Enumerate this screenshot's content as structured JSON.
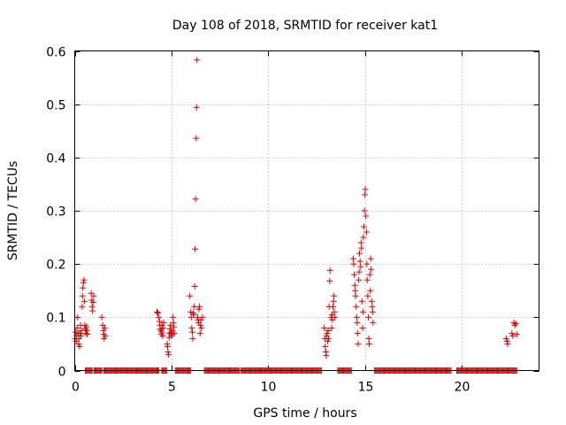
{
  "chart_data": {
    "type": "scatter",
    "title": "Day 108 of 2018, SRMTID for receiver kat1",
    "xlabel": "GPS time / hours",
    "ylabel": "SRMTID / TECUs",
    "xlim": [
      0,
      24
    ],
    "ylim": [
      0,
      0.6
    ],
    "xticks": [
      0,
      5,
      10,
      15,
      20
    ],
    "xtick_labels": [
      "0",
      "5",
      "10",
      "15",
      "20"
    ],
    "yticks": [
      0,
      0.1,
      0.2,
      0.3,
      0.4,
      0.5,
      0.6
    ],
    "ytick_labels": [
      "0",
      "0.1",
      "0.2",
      "0.3",
      "0.4",
      "0.5",
      "0.6"
    ],
    "grid": true,
    "marker": "+",
    "color": "#e00000",
    "series": [
      {
        "name": "SRMTID",
        "points": [
          [
            0.02,
            0.06
          ],
          [
            0.05,
            0.072
          ],
          [
            0.08,
            0.055
          ],
          [
            0.1,
            0.065
          ],
          [
            0.12,
            0.08
          ],
          [
            0.15,
            0.1
          ],
          [
            0.18,
            0.07
          ],
          [
            0.2,
            0.05
          ],
          [
            0.22,
            0.06
          ],
          [
            0.25,
            0.045
          ],
          [
            0.28,
            0.07
          ],
          [
            0.3,
            0.085
          ],
          [
            0.32,
            0.065
          ],
          [
            0.35,
            0.075
          ],
          [
            0.38,
            0.12
          ],
          [
            0.4,
            0.14
          ],
          [
            0.42,
            0.155
          ],
          [
            0.45,
            0.165
          ],
          [
            0.48,
            0.17
          ],
          [
            0.5,
            0.13
          ],
          [
            0.52,
            0.085
          ],
          [
            0.55,
            0.078
          ],
          [
            0.58,
            0.07
          ],
          [
            0.6,
            0.082
          ],
          [
            0.62,
            0.075
          ],
          [
            0.65,
            0.068
          ],
          [
            0.85,
            0.145
          ],
          [
            0.88,
            0.132
          ],
          [
            0.9,
            0.12
          ],
          [
            0.92,
            0.112
          ],
          [
            0.95,
            0.128
          ],
          [
            0.98,
            0.14
          ],
          [
            1.4,
            0.1
          ],
          [
            1.45,
            0.085
          ],
          [
            1.48,
            0.075
          ],
          [
            1.5,
            0.068
          ],
          [
            1.52,
            0.06
          ],
          [
            1.55,
            0.08
          ],
          [
            1.58,
            0.065
          ],
          [
            4.25,
            0.11
          ],
          [
            4.3,
            0.108
          ],
          [
            4.35,
            0.1
          ],
          [
            4.38,
            0.092
          ],
          [
            4.4,
            0.085
          ],
          [
            4.42,
            0.078
          ],
          [
            4.45,
            0.075
          ],
          [
            4.48,
            0.068
          ],
          [
            4.5,
            0.072
          ],
          [
            4.52,
            0.085
          ],
          [
            4.55,
            0.065
          ],
          [
            4.58,
            0.08
          ],
          [
            4.6,
            0.09
          ],
          [
            4.78,
            0.05
          ],
          [
            4.8,
            0.045
          ],
          [
            4.82,
            0.035
          ],
          [
            4.85,
            0.03
          ],
          [
            4.88,
            0.062
          ],
          [
            4.9,
            0.07
          ],
          [
            4.92,
            0.078
          ],
          [
            4.95,
            0.085
          ],
          [
            4.98,
            0.072
          ],
          [
            5.0,
            0.065
          ],
          [
            5.02,
            0.068
          ],
          [
            5.05,
            0.075
          ],
          [
            5.08,
            0.1
          ],
          [
            5.1,
            0.09
          ],
          [
            5.12,
            0.082
          ],
          [
            5.15,
            0.07
          ],
          [
            5.95,
            0.14
          ],
          [
            6.0,
            0.11
          ],
          [
            6.02,
            0.1
          ],
          [
            6.05,
            0.08
          ],
          [
            6.08,
            0.072
          ],
          [
            6.1,
            0.06
          ],
          [
            6.12,
            0.108
          ],
          [
            6.15,
            0.105
          ],
          [
            6.18,
            0.12
          ],
          [
            6.2,
            0.158
          ],
          [
            6.22,
            0.228
          ],
          [
            6.25,
            0.322
          ],
          [
            6.28,
            0.436
          ],
          [
            6.3,
            0.494
          ],
          [
            6.32,
            0.583
          ],
          [
            6.35,
            0.1
          ],
          [
            6.38,
            0.095
          ],
          [
            6.4,
            0.09
          ],
          [
            6.42,
            0.115
          ],
          [
            6.45,
            0.12
          ],
          [
            6.48,
            0.07
          ],
          [
            6.5,
            0.085
          ],
          [
            6.52,
            0.095
          ],
          [
            6.55,
            0.08
          ],
          [
            6.6,
            0.1
          ],
          [
            12.9,
            0.08
          ],
          [
            12.93,
            0.06
          ],
          [
            12.95,
            0.045
          ],
          [
            12.98,
            0.035
          ],
          [
            13.0,
            0.028
          ],
          [
            13.02,
            0.065
          ],
          [
            13.05,
            0.07
          ],
          [
            13.08,
            0.055
          ],
          [
            13.1,
            0.075
          ],
          [
            13.12,
            0.06
          ],
          [
            13.15,
            0.12
          ],
          [
            13.18,
            0.168
          ],
          [
            13.2,
            0.188
          ],
          [
            13.25,
            0.1
          ],
          [
            13.28,
            0.08
          ],
          [
            13.3,
            0.105
          ],
          [
            13.32,
            0.095
          ],
          [
            13.35,
            0.12
          ],
          [
            13.38,
            0.13
          ],
          [
            13.4,
            0.14
          ],
          [
            13.42,
            0.11
          ],
          [
            13.45,
            0.1
          ],
          [
            14.4,
            0.21
          ],
          [
            14.42,
            0.2
          ],
          [
            14.45,
            0.18
          ],
          [
            14.48,
            0.16
          ],
          [
            14.5,
            0.15
          ],
          [
            14.52,
            0.14
          ],
          [
            14.55,
            0.12
          ],
          [
            14.58,
            0.1
          ],
          [
            14.6,
            0.09
          ],
          [
            14.62,
            0.07
          ],
          [
            14.65,
            0.05
          ],
          [
            14.68,
            0.17
          ],
          [
            14.7,
            0.185
          ],
          [
            14.72,
            0.22
          ],
          [
            14.75,
            0.205
          ],
          [
            14.78,
            0.195
          ],
          [
            14.8,
            0.24
          ],
          [
            14.82,
            0.23
          ],
          [
            14.85,
            0.13
          ],
          [
            14.88,
            0.08
          ],
          [
            14.9,
            0.11
          ],
          [
            14.92,
            0.25
          ],
          [
            14.95,
            0.27
          ],
          [
            14.98,
            0.3
          ],
          [
            15.0,
            0.33
          ],
          [
            15.02,
            0.34
          ],
          [
            15.05,
            0.29
          ],
          [
            15.08,
            0.26
          ],
          [
            15.1,
            0.2
          ],
          [
            15.12,
            0.17
          ],
          [
            15.15,
            0.14
          ],
          [
            15.18,
            0.1
          ],
          [
            15.2,
            0.06
          ],
          [
            15.22,
            0.05
          ],
          [
            15.25,
            0.18
          ],
          [
            15.28,
            0.15
          ],
          [
            15.3,
            0.21
          ],
          [
            15.32,
            0.19
          ],
          [
            15.35,
            0.13
          ],
          [
            15.38,
            0.12
          ],
          [
            15.4,
            0.11
          ],
          [
            15.42,
            0.09
          ],
          [
            22.3,
            0.06
          ],
          [
            22.35,
            0.055
          ],
          [
            22.38,
            0.05
          ],
          [
            22.6,
            0.07
          ],
          [
            22.65,
            0.065
          ],
          [
            22.7,
            0.09
          ],
          [
            22.75,
            0.085
          ],
          [
            22.8,
            0.088
          ],
          [
            22.85,
            0.068
          ]
        ]
      },
      {
        "name": "zero-baseline",
        "segments": [
          [
            0.55,
            0.9
          ],
          [
            1.0,
            1.4
          ],
          [
            1.5,
            4.35
          ],
          [
            4.5,
            4.75
          ],
          [
            5.2,
            6.0
          ],
          [
            6.7,
            8.5
          ],
          [
            8.6,
            12.75
          ],
          [
            13.6,
            14.3
          ],
          [
            15.5,
            19.45
          ],
          [
            19.75,
            22.85
          ]
        ],
        "y": 0,
        "step_hours": 0.05
      }
    ]
  }
}
